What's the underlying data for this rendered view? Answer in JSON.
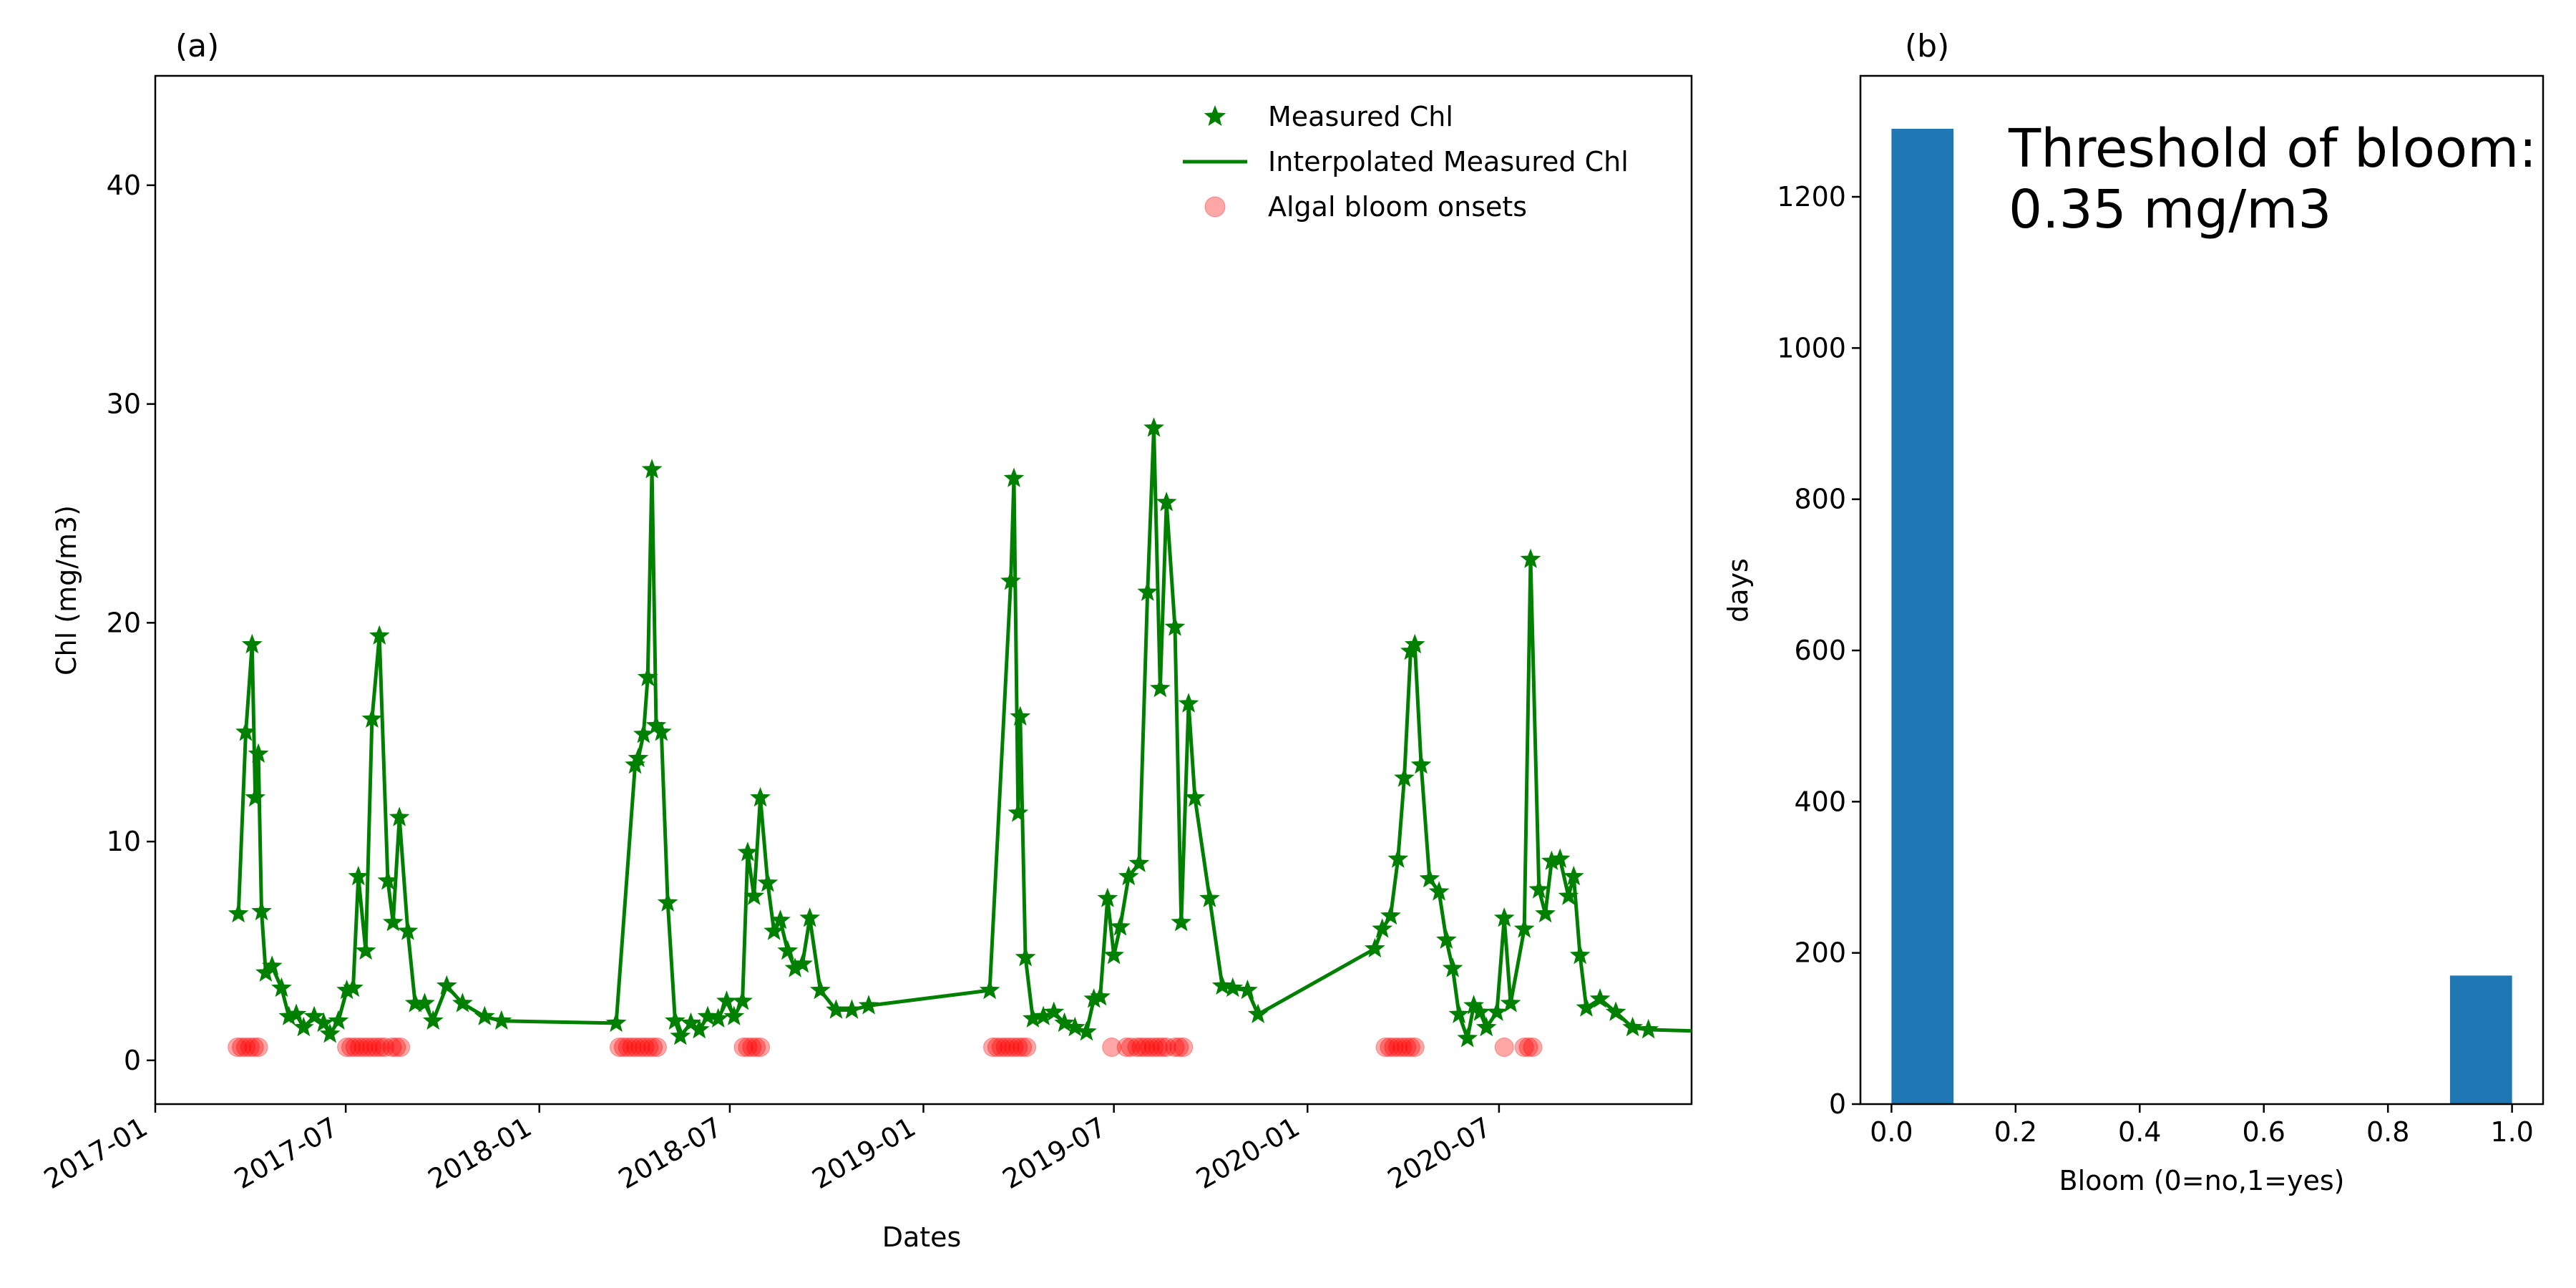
{
  "colors": {
    "line": "#008000",
    "bloom": "#ff0000",
    "bar": "#1f77b4",
    "axis": "#000000",
    "background": "#ffffff"
  },
  "chart_data": [
    {
      "id": "a",
      "panel_label": "(a)",
      "type": "line",
      "xlabel": "Dates",
      "ylabel": "Chl (mg/m3)",
      "x_type": "date",
      "xlim": [
        "2017-01-01",
        "2020-12-31"
      ],
      "ylim": [
        -2,
        45
      ],
      "xticks": [
        "2017-01",
        "2017-07",
        "2018-01",
        "2018-07",
        "2019-01",
        "2019-07",
        "2020-01",
        "2020-07"
      ],
      "yticks": [
        0,
        10,
        20,
        30,
        40
      ],
      "legend": {
        "position": "top-right",
        "marker_label": "Measured Chl",
        "line_label": "Interpolated Measured Chl",
        "bloom_label": "Algal bloom onsets"
      },
      "series": [
        {
          "name": "Measured Chl",
          "style": "line+star",
          "points": [
            [
              "2017-03-21",
              6.7
            ],
            [
              "2017-03-28",
              15
            ],
            [
              "2017-04-03",
              19
            ],
            [
              "2017-04-06",
              12
            ],
            [
              "2017-04-09",
              14
            ],
            [
              "2017-04-12",
              6.8
            ],
            [
              "2017-04-16",
              4
            ],
            [
              "2017-04-22",
              4.3
            ],
            [
              "2017-05-01",
              3.3
            ],
            [
              "2017-05-08",
              2
            ],
            [
              "2017-05-15",
              2.1
            ],
            [
              "2017-05-22",
              1.5
            ],
            [
              "2017-06-01",
              2
            ],
            [
              "2017-06-10",
              1.7
            ],
            [
              "2017-06-16",
              1.2
            ],
            [
              "2017-06-24",
              1.8
            ],
            [
              "2017-07-02",
              3.2
            ],
            [
              "2017-07-08",
              3.3
            ],
            [
              "2017-07-13",
              8.4
            ],
            [
              "2017-07-20",
              5
            ],
            [
              "2017-07-26",
              15.6
            ],
            [
              "2017-08-02",
              19.4
            ],
            [
              "2017-08-10",
              8.2
            ],
            [
              "2017-08-15",
              6.3
            ],
            [
              "2017-08-21",
              11.1
            ],
            [
              "2017-08-29",
              5.9
            ],
            [
              "2017-09-05",
              2.6
            ],
            [
              "2017-09-14",
              2.6
            ],
            [
              "2017-09-22",
              1.8
            ],
            [
              "2017-10-05",
              3.4
            ],
            [
              "2017-10-20",
              2.6
            ],
            [
              "2017-11-10",
              2
            ],
            [
              "2017-11-26",
              1.8
            ],
            [
              "2018-03-15",
              1.7
            ],
            [
              "2018-04-02",
              13.5
            ],
            [
              "2018-04-05",
              13.8
            ],
            [
              "2018-04-10",
              14.9
            ],
            [
              "2018-04-14",
              17.5
            ],
            [
              "2018-04-18",
              27
            ],
            [
              "2018-04-22",
              15.3
            ],
            [
              "2018-04-27",
              15
            ],
            [
              "2018-05-03",
              7.2
            ],
            [
              "2018-05-10",
              1.8
            ],
            [
              "2018-05-15",
              1.1
            ],
            [
              "2018-05-25",
              1.7
            ],
            [
              "2018-06-02",
              1.4
            ],
            [
              "2018-06-10",
              2
            ],
            [
              "2018-06-20",
              1.9
            ],
            [
              "2018-06-28",
              2.7
            ],
            [
              "2018-07-05",
              2
            ],
            [
              "2018-07-13",
              2.7
            ],
            [
              "2018-07-18",
              9.5
            ],
            [
              "2018-07-24",
              7.5
            ],
            [
              "2018-07-30",
              12
            ],
            [
              "2018-08-06",
              8.1
            ],
            [
              "2018-08-12",
              5.9
            ],
            [
              "2018-08-18",
              6.4
            ],
            [
              "2018-08-25",
              5
            ],
            [
              "2018-09-01",
              4.2
            ],
            [
              "2018-09-08",
              4.4
            ],
            [
              "2018-09-15",
              6.5
            ],
            [
              "2018-09-25",
              3.2
            ],
            [
              "2018-10-10",
              2.3
            ],
            [
              "2018-10-25",
              2.3
            ],
            [
              "2018-11-10",
              2.5
            ],
            [
              "2019-03-05",
              3.2
            ],
            [
              "2019-03-25",
              21.9
            ],
            [
              "2019-03-28",
              26.6
            ],
            [
              "2019-04-01",
              11.3
            ],
            [
              "2019-04-03",
              15.7
            ],
            [
              "2019-04-08",
              4.7
            ],
            [
              "2019-04-15",
              1.9
            ],
            [
              "2019-04-25",
              2
            ],
            [
              "2019-05-05",
              2.2
            ],
            [
              "2019-05-15",
              1.7
            ],
            [
              "2019-05-25",
              1.5
            ],
            [
              "2019-06-05",
              1.3
            ],
            [
              "2019-06-12",
              2.8
            ],
            [
              "2019-06-18",
              2.9
            ],
            [
              "2019-06-25",
              7.4
            ],
            [
              "2019-07-01",
              4.8
            ],
            [
              "2019-07-07",
              6.1
            ],
            [
              "2019-07-15",
              8.4
            ],
            [
              "2019-07-25",
              9
            ],
            [
              "2019-08-02",
              21.4
            ],
            [
              "2019-08-08",
              28.9
            ],
            [
              "2019-08-14",
              17
            ],
            [
              "2019-08-20",
              25.5
            ],
            [
              "2019-08-28",
              19.8
            ],
            [
              "2019-09-03",
              6.3
            ],
            [
              "2019-09-10",
              16.3
            ],
            [
              "2019-09-16",
              12
            ],
            [
              "2019-09-30",
              7.4
            ],
            [
              "2019-10-12",
              3.4
            ],
            [
              "2019-10-22",
              3.3
            ],
            [
              "2019-11-05",
              3.2
            ],
            [
              "2019-11-15",
              2.1
            ],
            [
              "2020-03-05",
              5.1
            ],
            [
              "2020-03-12",
              6
            ],
            [
              "2020-03-20",
              6.6
            ],
            [
              "2020-03-27",
              9.2
            ],
            [
              "2020-04-02",
              12.9
            ],
            [
              "2020-04-08",
              18.7
            ],
            [
              "2020-04-12",
              19
            ],
            [
              "2020-04-18",
              13.5
            ],
            [
              "2020-04-26",
              8.3
            ],
            [
              "2020-05-05",
              7.7
            ],
            [
              "2020-05-12",
              5.5
            ],
            [
              "2020-05-18",
              4.2
            ],
            [
              "2020-05-24",
              2.1
            ],
            [
              "2020-06-01",
              1
            ],
            [
              "2020-06-07",
              2.5
            ],
            [
              "2020-06-13",
              2.2
            ],
            [
              "2020-06-19",
              1.5
            ],
            [
              "2020-06-29",
              2.2
            ],
            [
              "2020-07-06",
              6.5
            ],
            [
              "2020-07-12",
              2.6
            ],
            [
              "2020-07-25",
              6
            ],
            [
              "2020-07-31",
              22.9
            ],
            [
              "2020-08-08",
              7.8
            ],
            [
              "2020-08-14",
              6.7
            ],
            [
              "2020-08-20",
              9.1
            ],
            [
              "2020-08-28",
              9.2
            ],
            [
              "2020-09-05",
              7.5
            ],
            [
              "2020-09-10",
              8.4
            ],
            [
              "2020-09-16",
              4.8
            ],
            [
              "2020-09-22",
              2.4
            ],
            [
              "2020-10-05",
              2.8
            ],
            [
              "2020-10-20",
              2.2
            ],
            [
              "2020-11-05",
              1.5
            ],
            [
              "2020-11-20",
              1.4
            ],
            [
              "2020-12-31",
              1.35
            ]
          ]
        },
        {
          "name": "Algal bloom onsets",
          "style": "scatter",
          "y": 0.6,
          "dates": [
            "2017-03-20",
            "2017-03-24",
            "2017-03-28",
            "2017-04-01",
            "2017-04-05",
            "2017-04-09",
            "2017-07-02",
            "2017-07-06",
            "2017-07-10",
            "2017-07-14",
            "2017-07-18",
            "2017-07-22",
            "2017-07-26",
            "2017-07-30",
            "2017-08-03",
            "2017-08-07",
            "2017-08-14",
            "2017-08-18",
            "2017-08-22",
            "2018-03-18",
            "2018-03-22",
            "2018-03-26",
            "2018-03-30",
            "2018-04-03",
            "2018-04-07",
            "2018-04-11",
            "2018-04-15",
            "2018-04-19",
            "2018-04-23",
            "2018-07-14",
            "2018-07-18",
            "2018-07-22",
            "2018-07-26",
            "2018-07-30",
            "2019-03-08",
            "2019-03-12",
            "2019-03-16",
            "2019-03-20",
            "2019-03-24",
            "2019-03-28",
            "2019-04-01",
            "2019-04-05",
            "2019-04-09",
            "2019-06-29",
            "2019-07-13",
            "2019-07-17",
            "2019-07-23",
            "2019-07-27",
            "2019-07-31",
            "2019-08-04",
            "2019-08-08",
            "2019-08-12",
            "2019-08-16",
            "2019-08-20",
            "2019-08-28",
            "2019-09-01",
            "2019-09-05",
            "2020-03-15",
            "2020-03-19",
            "2020-03-23",
            "2020-03-27",
            "2020-03-31",
            "2020-04-04",
            "2020-04-08",
            "2020-04-12",
            "2020-07-06",
            "2020-07-25",
            "2020-07-29",
            "2020-08-02"
          ]
        }
      ]
    },
    {
      "id": "b",
      "panel_label": "(b)",
      "type": "bar",
      "xlabel": "Bloom (0=no,1=yes)",
      "ylabel": "days",
      "xlim": [
        -0.05,
        1.05
      ],
      "ylim": [
        0,
        1360
      ],
      "xticks": [
        0.0,
        0.2,
        0.4,
        0.6,
        0.8,
        1.0
      ],
      "xtick_labels": [
        "0.0",
        "0.2",
        "0.4",
        "0.6",
        "0.8",
        "1.0"
      ],
      "yticks": [
        0,
        200,
        400,
        600,
        800,
        1000,
        1200
      ],
      "bins": [
        [
          0.0,
          0.1
        ],
        [
          0.9,
          1.0
        ]
      ],
      "values": [
        1290,
        170
      ],
      "annotation": {
        "line1": "Threshold of bloom:",
        "line2": "0.35 mg/m3"
      }
    }
  ]
}
